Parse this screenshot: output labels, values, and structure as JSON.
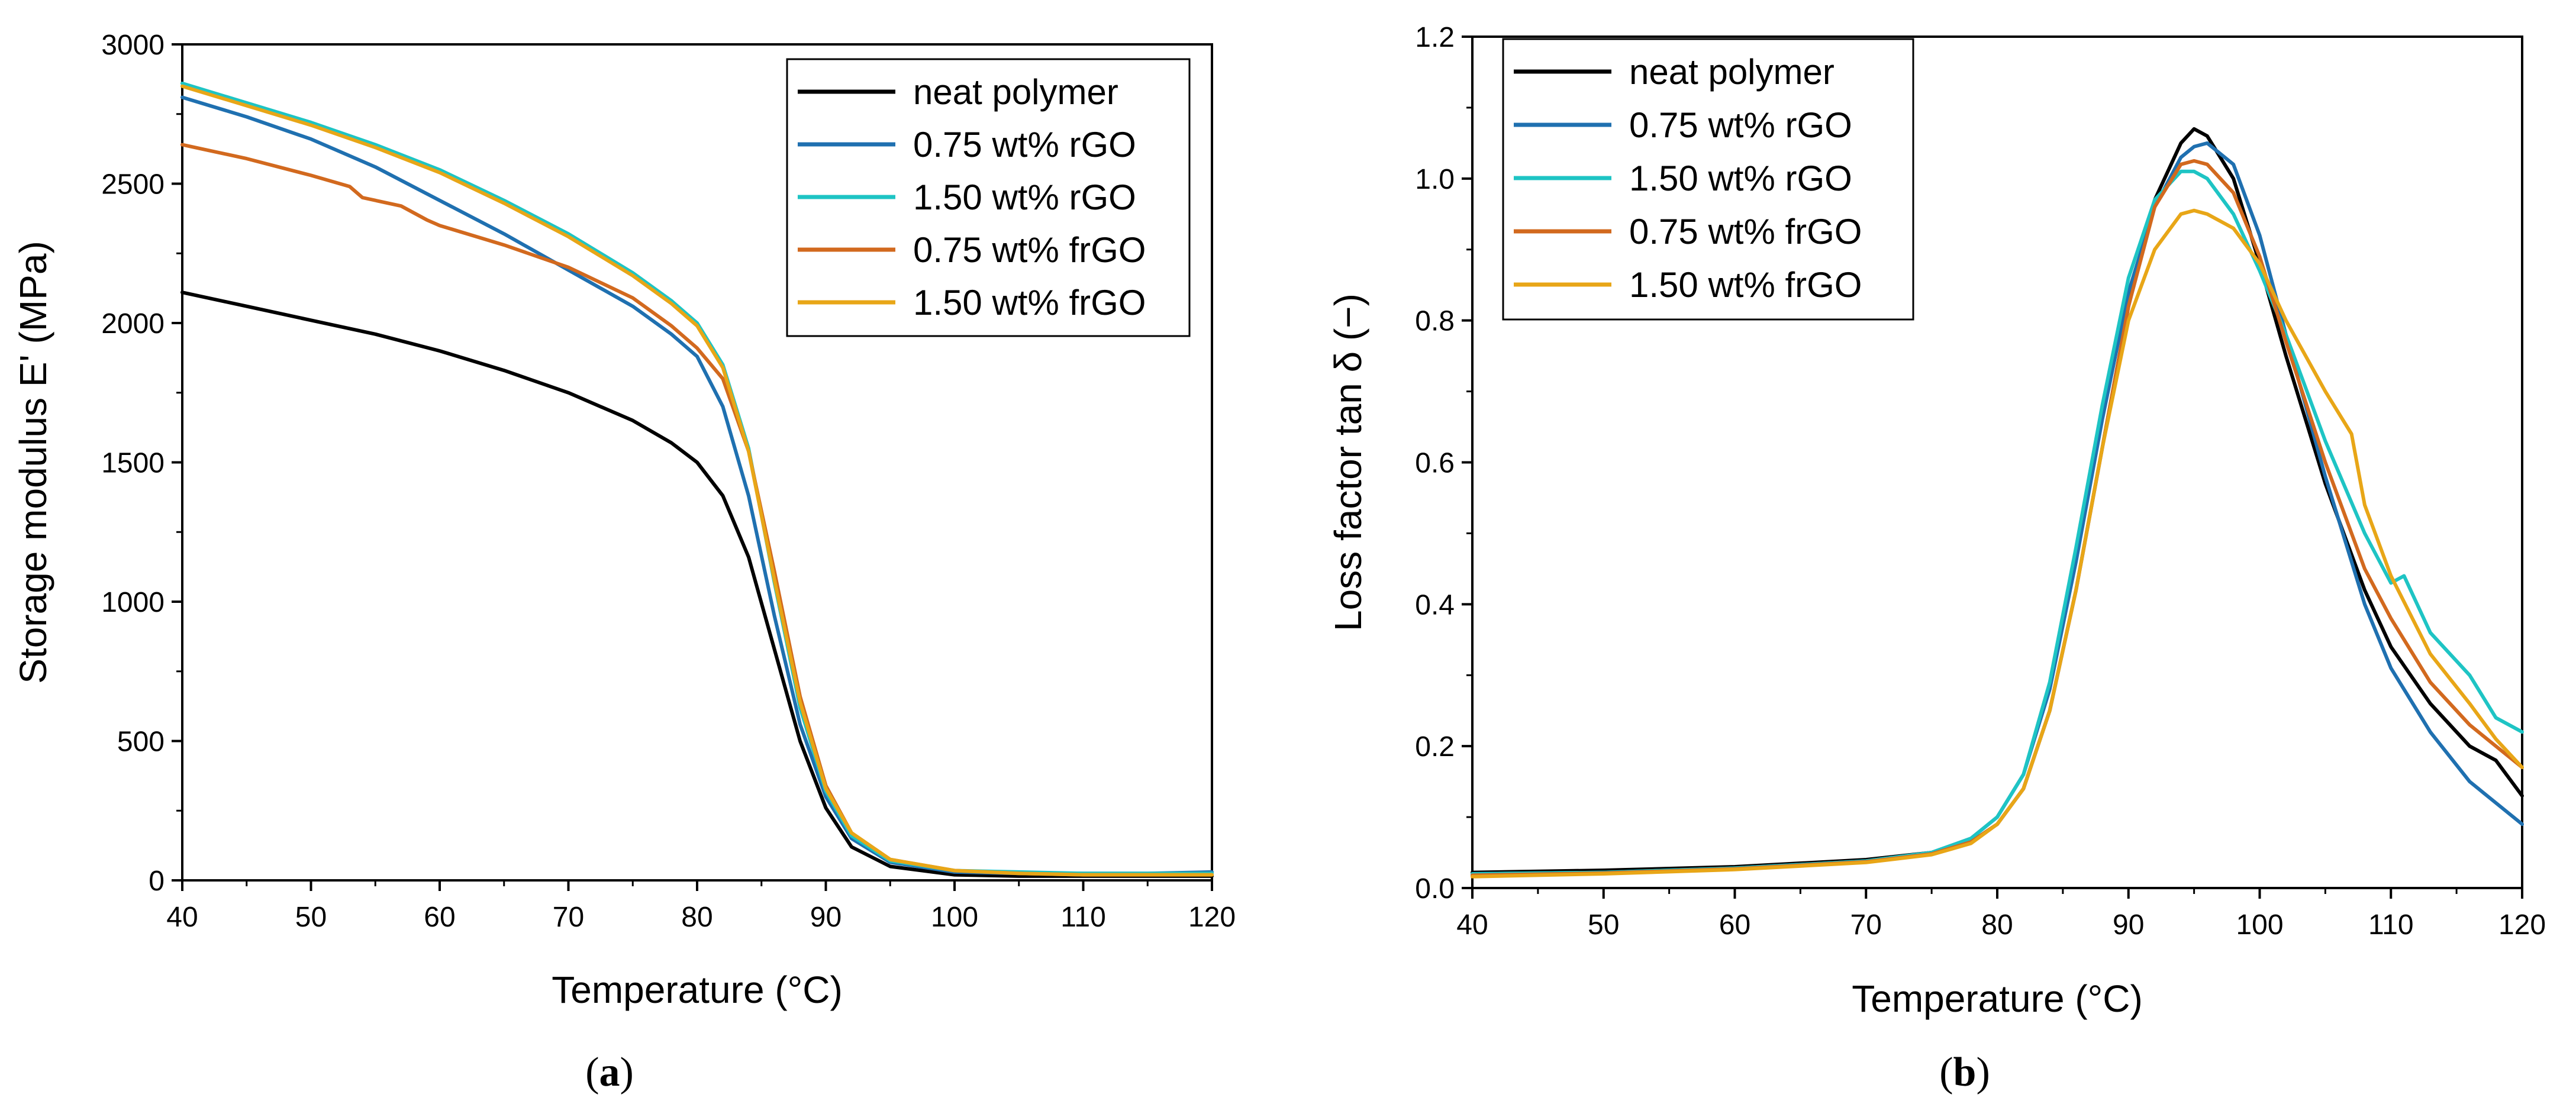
{
  "chart_data": [
    {
      "type": "line",
      "panel": "a",
      "caption_open": "(",
      "caption_letter": "a",
      "caption_close": ")",
      "xlabel": "Temperature (°C)",
      "ylabel": "Storage modulus E' (MPa)",
      "xlim": [
        40,
        120
      ],
      "ylim": [
        0,
        3000
      ],
      "xticks": [
        "40",
        "50",
        "60",
        "70",
        "80",
        "90",
        "100",
        "110",
        "120"
      ],
      "yticks": [
        "0",
        "500",
        "1000",
        "1500",
        "2000",
        "2500",
        "3000"
      ],
      "legend_position": "top-right",
      "series": [
        {
          "name": "neat polymer",
          "color": "#000000",
          "points": [
            [
              40,
              2110
            ],
            [
              45,
              2060
            ],
            [
              50,
              2010
            ],
            [
              55,
              1960
            ],
            [
              60,
              1900
            ],
            [
              65,
              1830
            ],
            [
              70,
              1750
            ],
            [
              75,
              1650
            ],
            [
              78,
              1570
            ],
            [
              80,
              1500
            ],
            [
              82,
              1380
            ],
            [
              84,
              1160
            ],
            [
              86,
              830
            ],
            [
              88,
              500
            ],
            [
              90,
              260
            ],
            [
              92,
              120
            ],
            [
              95,
              50
            ],
            [
              100,
              20
            ],
            [
              105,
              15
            ],
            [
              110,
              15
            ],
            [
              115,
              15
            ],
            [
              120,
              15
            ]
          ]
        },
        {
          "name": "0.75 wt% rGO",
          "color": "#1f70b0",
          "points": [
            [
              40,
              2810
            ],
            [
              45,
              2740
            ],
            [
              50,
              2660
            ],
            [
              55,
              2560
            ],
            [
              60,
              2440
            ],
            [
              65,
              2320
            ],
            [
              70,
              2190
            ],
            [
              75,
              2060
            ],
            [
              78,
              1960
            ],
            [
              80,
              1880
            ],
            [
              82,
              1700
            ],
            [
              84,
              1380
            ],
            [
              86,
              950
            ],
            [
              88,
              560
            ],
            [
              90,
              300
            ],
            [
              92,
              150
            ],
            [
              95,
              65
            ],
            [
              100,
              30
            ],
            [
              105,
              25
            ],
            [
              110,
              25
            ],
            [
              115,
              25
            ],
            [
              120,
              30
            ]
          ]
        },
        {
          "name": "1.50 wt% rGO",
          "color": "#1ec4c4",
          "points": [
            [
              40,
              2860
            ],
            [
              45,
              2790
            ],
            [
              50,
              2720
            ],
            [
              55,
              2640
            ],
            [
              60,
              2550
            ],
            [
              65,
              2440
            ],
            [
              70,
              2320
            ],
            [
              75,
              2180
            ],
            [
              78,
              2080
            ],
            [
              80,
              2000
            ],
            [
              82,
              1850
            ],
            [
              84,
              1550
            ],
            [
              86,
              1070
            ],
            [
              88,
              620
            ],
            [
              90,
              320
            ],
            [
              92,
              160
            ],
            [
              95,
              70
            ],
            [
              100,
              35
            ],
            [
              105,
              30
            ],
            [
              110,
              25
            ],
            [
              115,
              25
            ],
            [
              120,
              25
            ]
          ]
        },
        {
          "name": "0.75 wt% frGO",
          "color": "#d2691e",
          "points": [
            [
              40,
              2640
            ],
            [
              45,
              2590
            ],
            [
              50,
              2530
            ],
            [
              53,
              2490
            ],
            [
              54,
              2450
            ],
            [
              57,
              2420
            ],
            [
              59,
              2370
            ],
            [
              60,
              2350
            ],
            [
              65,
              2280
            ],
            [
              70,
              2200
            ],
            [
              75,
              2090
            ],
            [
              78,
              1990
            ],
            [
              80,
              1910
            ],
            [
              82,
              1800
            ],
            [
              84,
              1540
            ],
            [
              86,
              1110
            ],
            [
              88,
              660
            ],
            [
              90,
              340
            ],
            [
              92,
              170
            ],
            [
              95,
              75
            ],
            [
              100,
              35
            ],
            [
              105,
              25
            ],
            [
              110,
              20
            ],
            [
              115,
              20
            ],
            [
              120,
              20
            ]
          ]
        },
        {
          "name": "1.50 wt% frGO",
          "color": "#e8a617",
          "points": [
            [
              40,
              2850
            ],
            [
              45,
              2780
            ],
            [
              50,
              2710
            ],
            [
              55,
              2630
            ],
            [
              60,
              2540
            ],
            [
              65,
              2430
            ],
            [
              70,
              2310
            ],
            [
              75,
              2170
            ],
            [
              78,
              2070
            ],
            [
              80,
              1990
            ],
            [
              82,
              1840
            ],
            [
              84,
              1540
            ],
            [
              86,
              1080
            ],
            [
              88,
              640
            ],
            [
              90,
              330
            ],
            [
              92,
              170
            ],
            [
              95,
              75
            ],
            [
              100,
              35
            ],
            [
              105,
              25
            ],
            [
              110,
              20
            ],
            [
              115,
              20
            ],
            [
              120,
              20
            ]
          ]
        }
      ]
    },
    {
      "type": "line",
      "panel": "b",
      "caption_open": "(",
      "caption_letter": "b",
      "caption_close": ")",
      "xlabel": "Temperature (°C)",
      "ylabel": "Loss factor tan δ (−)",
      "xlim": [
        40,
        120
      ],
      "ylim": [
        0,
        1.2
      ],
      "xticks": [
        "40",
        "50",
        "60",
        "70",
        "80",
        "90",
        "100",
        "110",
        "120"
      ],
      "yticks": [
        "0.0",
        "0.2",
        "0.4",
        "0.6",
        "0.8",
        "1.0",
        "1.2"
      ],
      "legend_position": "top-left",
      "series": [
        {
          "name": "neat polymer",
          "color": "#000000",
          "points": [
            [
              40,
              0.022
            ],
            [
              50,
              0.025
            ],
            [
              60,
              0.03
            ],
            [
              70,
              0.04
            ],
            [
              75,
              0.05
            ],
            [
              78,
              0.065
            ],
            [
              80,
              0.09
            ],
            [
              82,
              0.14
            ],
            [
              84,
              0.25
            ],
            [
              86,
              0.42
            ],
            [
              88,
              0.62
            ],
            [
              90,
              0.82
            ],
            [
              92,
              0.97
            ],
            [
              94,
              1.05
            ],
            [
              95,
              1.07
            ],
            [
              96,
              1.06
            ],
            [
              98,
              1.0
            ],
            [
              100,
              0.88
            ],
            [
              102,
              0.75
            ],
            [
              105,
              0.57
            ],
            [
              108,
              0.42
            ],
            [
              110,
              0.34
            ],
            [
              113,
              0.26
            ],
            [
              116,
              0.2
            ],
            [
              118,
              0.18
            ],
            [
              120,
              0.13
            ]
          ]
        },
        {
          "name": "0.75 wt% rGO",
          "color": "#1f70b0",
          "points": [
            [
              40,
              0.02
            ],
            [
              50,
              0.022
            ],
            [
              60,
              0.028
            ],
            [
              70,
              0.038
            ],
            [
              75,
              0.05
            ],
            [
              78,
              0.07
            ],
            [
              80,
              0.1
            ],
            [
              82,
              0.16
            ],
            [
              84,
              0.28
            ],
            [
              86,
              0.46
            ],
            [
              88,
              0.66
            ],
            [
              90,
              0.84
            ],
            [
              92,
              0.96
            ],
            [
              94,
              1.03
            ],
            [
              95,
              1.045
            ],
            [
              96,
              1.05
            ],
            [
              98,
              1.02
            ],
            [
              100,
              0.92
            ],
            [
              102,
              0.78
            ],
            [
              105,
              0.58
            ],
            [
              108,
              0.4
            ],
            [
              110,
              0.31
            ],
            [
              113,
              0.22
            ],
            [
              116,
              0.15
            ],
            [
              118,
              0.12
            ],
            [
              120,
              0.09
            ]
          ]
        },
        {
          "name": "1.50 wt% rGO",
          "color": "#1ec4c4",
          "points": [
            [
              40,
              0.02
            ],
            [
              50,
              0.022
            ],
            [
              60,
              0.028
            ],
            [
              70,
              0.038
            ],
            [
              75,
              0.05
            ],
            [
              78,
              0.07
            ],
            [
              80,
              0.1
            ],
            [
              82,
              0.16
            ],
            [
              84,
              0.29
            ],
            [
              86,
              0.48
            ],
            [
              88,
              0.68
            ],
            [
              90,
              0.86
            ],
            [
              92,
              0.97
            ],
            [
              94,
              1.01
            ],
            [
              95,
              1.01
            ],
            [
              96,
              1.0
            ],
            [
              98,
              0.95
            ],
            [
              100,
              0.87
            ],
            [
              102,
              0.78
            ],
            [
              105,
              0.63
            ],
            [
              108,
              0.5
            ],
            [
              110,
              0.43
            ],
            [
              111,
              0.44
            ],
            [
              113,
              0.36
            ],
            [
              116,
              0.3
            ],
            [
              118,
              0.24
            ],
            [
              120,
              0.22
            ]
          ]
        },
        {
          "name": "0.75 wt% frGO",
          "color": "#d2691e",
          "points": [
            [
              40,
              0.018
            ],
            [
              50,
              0.021
            ],
            [
              60,
              0.027
            ],
            [
              70,
              0.037
            ],
            [
              75,
              0.048
            ],
            [
              78,
              0.065
            ],
            [
              80,
              0.09
            ],
            [
              82,
              0.14
            ],
            [
              84,
              0.25
            ],
            [
              86,
              0.42
            ],
            [
              88,
              0.62
            ],
            [
              90,
              0.82
            ],
            [
              92,
              0.96
            ],
            [
              94,
              1.02
            ],
            [
              95,
              1.025
            ],
            [
              96,
              1.02
            ],
            [
              98,
              0.98
            ],
            [
              100,
              0.89
            ],
            [
              102,
              0.77
            ],
            [
              105,
              0.6
            ],
            [
              108,
              0.45
            ],
            [
              110,
              0.38
            ],
            [
              113,
              0.29
            ],
            [
              116,
              0.23
            ],
            [
              118,
              0.2
            ],
            [
              120,
              0.17
            ]
          ]
        },
        {
          "name": "1.50 wt% frGO",
          "color": "#e8a617",
          "points": [
            [
              40,
              0.016
            ],
            [
              50,
              0.02
            ],
            [
              60,
              0.026
            ],
            [
              70,
              0.036
            ],
            [
              75,
              0.047
            ],
            [
              78,
              0.063
            ],
            [
              80,
              0.09
            ],
            [
              82,
              0.14
            ],
            [
              84,
              0.25
            ],
            [
              86,
              0.42
            ],
            [
              88,
              0.62
            ],
            [
              90,
              0.8
            ],
            [
              92,
              0.9
            ],
            [
              94,
              0.95
            ],
            [
              95,
              0.955
            ],
            [
              96,
              0.95
            ],
            [
              98,
              0.93
            ],
            [
              100,
              0.88
            ],
            [
              102,
              0.8
            ],
            [
              105,
              0.7
            ],
            [
              107,
              0.64
            ],
            [
              108,
              0.54
            ],
            [
              110,
              0.44
            ],
            [
              113,
              0.33
            ],
            [
              116,
              0.26
            ],
            [
              118,
              0.21
            ],
            [
              120,
              0.17
            ]
          ]
        }
      ]
    }
  ]
}
